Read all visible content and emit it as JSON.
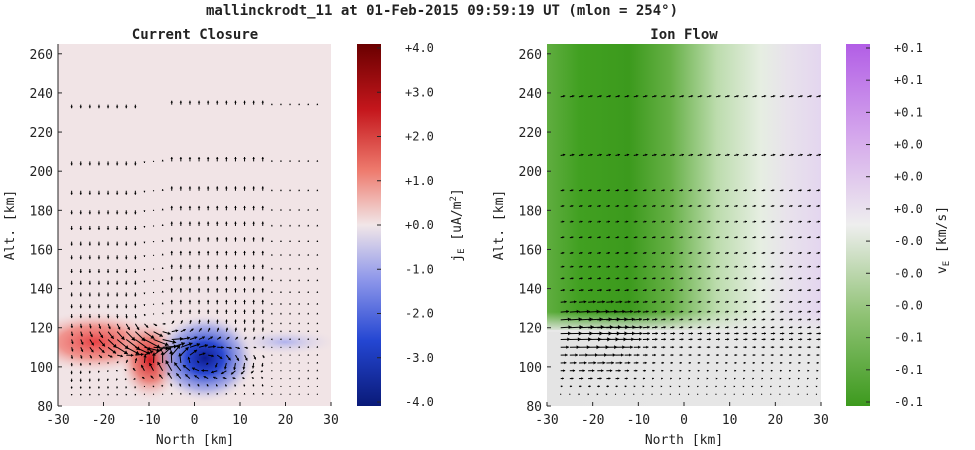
{
  "figure": {
    "title": "mallinckrodt_11 at 01-Feb-2015 09:59:19 UT (mlon = 254°)"
  },
  "chart_data": [
    {
      "type": "heatmap",
      "title": "Current Closure",
      "xlabel": "North [km]",
      "ylabel": "Alt. [km]",
      "xlim": [
        -30,
        30
      ],
      "ylim": [
        80,
        265
      ],
      "x_ticks": [
        "-30",
        "-20",
        "-10",
        "0",
        "10",
        "20",
        "30"
      ],
      "y_ticks": [
        "80",
        "100",
        "120",
        "140",
        "160",
        "180",
        "200",
        "220",
        "240",
        "260"
      ],
      "grid": false,
      "colormap": "blue-white-red",
      "colors": {
        "positive": "#b4040c",
        "neutral": "#f1e4e6",
        "negative": "#1030c0"
      },
      "colorbar": {
        "label": "j_E [uA/m^2]",
        "ticks": [
          "+4.0",
          "+3.0",
          "+2.0",
          "+1.0",
          "+0.0",
          "-1.0",
          "-2.0",
          "-3.0",
          "-4.0"
        ],
        "range": [
          -4.0,
          4.0
        ]
      },
      "features": [
        {
          "name": "positive current lobe",
          "x_center": -22,
          "y_center": 113,
          "peak_value": 2.0
        },
        {
          "name": "positive current core",
          "x_center": -8,
          "y_center": 104,
          "peak_value": 2.3
        },
        {
          "name": "negative current core",
          "x_center": 2,
          "y_center": 102,
          "peak_value": -3.9
        },
        {
          "name": "negative current band",
          "x_center": 20,
          "y_center": 113,
          "peak_value": -0.8
        }
      ],
      "quiver": {
        "description": "current density vectors",
        "west_region": "downward arrows for x < -12",
        "east_region": "upward arrows for x > -6",
        "circulation": "clockwise swirl around x≈0, y≈103"
      }
    },
    {
      "type": "heatmap",
      "title": "Ion Flow",
      "xlabel": "North [km]",
      "ylabel": "Alt. [km]",
      "xlim": [
        -30,
        30
      ],
      "ylim": [
        80,
        265
      ],
      "x_ticks": [
        "-30",
        "-20",
        "-10",
        "0",
        "10",
        "20",
        "30"
      ],
      "y_ticks": [
        "80",
        "100",
        "120",
        "140",
        "160",
        "180",
        "200",
        "220",
        "240",
        "260"
      ],
      "grid": false,
      "colormap": "green-white-purple",
      "colors": {
        "positive": "#b764e8",
        "neutral": "#e8e8e8",
        "negative": "#3a9a1c"
      },
      "colorbar": {
        "label": "v_E [km/s]",
        "ticks": [
          "+0.1",
          "+0.1",
          "+0.1",
          "+0.0",
          "+0.0",
          "+0.0",
          "-0.0",
          "-0.0",
          "-0.0",
          "-0.1",
          "-0.1",
          "-0.1"
        ],
        "range": [
          -0.1,
          0.1
        ]
      },
      "features": [
        {
          "name": "westward flow band",
          "x_center": -20,
          "x_width": 8,
          "y_min": 118,
          "value": -0.1
        },
        {
          "name": "eastward flow region",
          "x_min": 0,
          "x_max": 30,
          "y_min": 118,
          "value": 0.02
        },
        {
          "name": "weak flow",
          "y_max": 118,
          "value": 0.0
        }
      ],
      "quiver": {
        "description": "ion velocity vectors",
        "direction": "mostly horizontal, longest near x=-20, y=120"
      }
    }
  ]
}
